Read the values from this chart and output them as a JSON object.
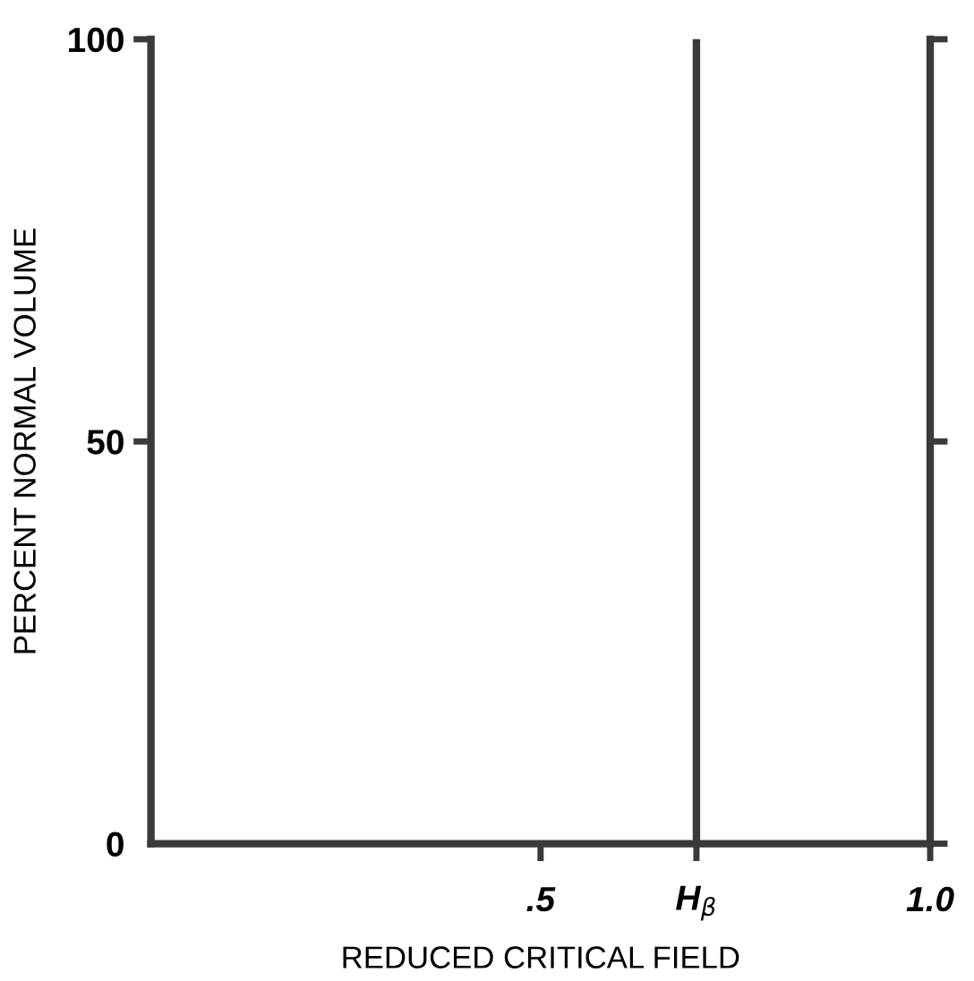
{
  "chart_data": {
    "type": "line",
    "xlabel": "REDUCED CRITICAL FIELD",
    "ylabel": "PERCENT NORMAL VOLUME",
    "xlim": [
      0,
      1.0
    ],
    "ylim": [
      0,
      100
    ],
    "xticks": [
      {
        "value": 0.5,
        "label": ".5"
      },
      {
        "value": 0.7,
        "label": "H$_{β}$"
      },
      {
        "value": 1.0,
        "label": "1.0"
      }
    ],
    "yticks": [
      0,
      50,
      100
    ],
    "ref_lines": [
      {
        "axis": "x",
        "value": 0.7,
        "color": "#3a3a3a"
      }
    ],
    "grid": false,
    "legend": false
  }
}
